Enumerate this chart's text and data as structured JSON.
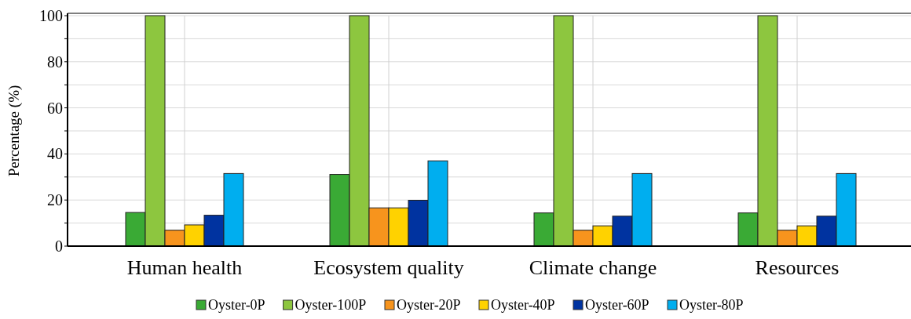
{
  "chart_data": {
    "type": "bar",
    "ylabel": "Percentage (%)",
    "categories": [
      "Human health",
      "Ecosystem quality",
      "Climate change",
      "Resources"
    ],
    "series": [
      {
        "name": "Oyster-0P",
        "color": "#3aaa35",
        "values": [
          14.6,
          31.1,
          14.4,
          14.4
        ]
      },
      {
        "name": "Oyster-100P",
        "color": "#8dc63f",
        "values": [
          100,
          100,
          100,
          100
        ]
      },
      {
        "name": "Oyster-20P",
        "color": "#f7941d",
        "values": [
          6.9,
          16.6,
          6.9,
          6.9
        ]
      },
      {
        "name": "Oyster-40P",
        "color": "#ffd200",
        "values": [
          9.2,
          16.6,
          8.8,
          8.8
        ]
      },
      {
        "name": "Oyster-60P",
        "color": "#0033a0",
        "values": [
          13.4,
          19.9,
          13.0,
          13.0
        ]
      },
      {
        "name": "Oyster-80P",
        "color": "#00aeef",
        "values": [
          31.5,
          37.0,
          31.5,
          31.5
        ]
      }
    ],
    "ylim": [
      0,
      100
    ],
    "yticks": [
      0,
      20,
      40,
      60,
      80,
      100
    ],
    "grid": true,
    "legend": "bottom"
  }
}
